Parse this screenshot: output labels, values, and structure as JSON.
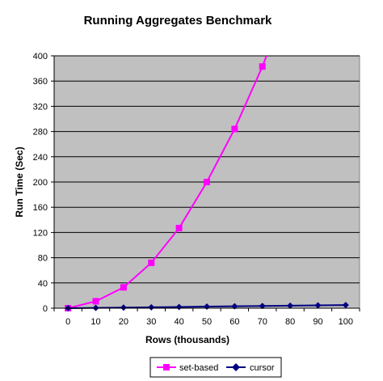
{
  "chart_data": {
    "type": "line",
    "title": "Running Aggregates Benchmark",
    "xlabel": "Rows (thousands)",
    "ylabel": "Run Time (Sec)",
    "x": [
      0,
      10,
      20,
      30,
      40,
      50,
      60,
      70,
      80,
      90,
      100
    ],
    "xticks": [
      "0",
      "10",
      "20",
      "30",
      "40",
      "50",
      "60",
      "70",
      "80",
      "90",
      "100"
    ],
    "yticks": [
      "0",
      "40",
      "80",
      "120",
      "160",
      "200",
      "240",
      "280",
      "320",
      "360",
      "400"
    ],
    "ylim": [
      0,
      400
    ],
    "grid": true,
    "legend_position": "bottom",
    "plot_background": "#c0c0c0",
    "series": [
      {
        "name": "set-based",
        "color": "#ff00ff",
        "marker": "square",
        "x": [
          0,
          10,
          20,
          30,
          40,
          50,
          60,
          70
        ],
        "values": [
          0,
          11,
          33,
          72,
          127,
          200,
          284,
          383
        ],
        "continues_to": [
          71.5,
          400
        ]
      },
      {
        "name": "cursor",
        "color": "#000080",
        "marker": "diamond",
        "x": [
          0,
          10,
          20,
          30,
          40,
          50,
          60,
          70,
          80,
          90,
          100
        ],
        "values": [
          0,
          0.5,
          1,
          1.5,
          2,
          2.5,
          3,
          3.5,
          4,
          4.5,
          5
        ]
      }
    ]
  }
}
